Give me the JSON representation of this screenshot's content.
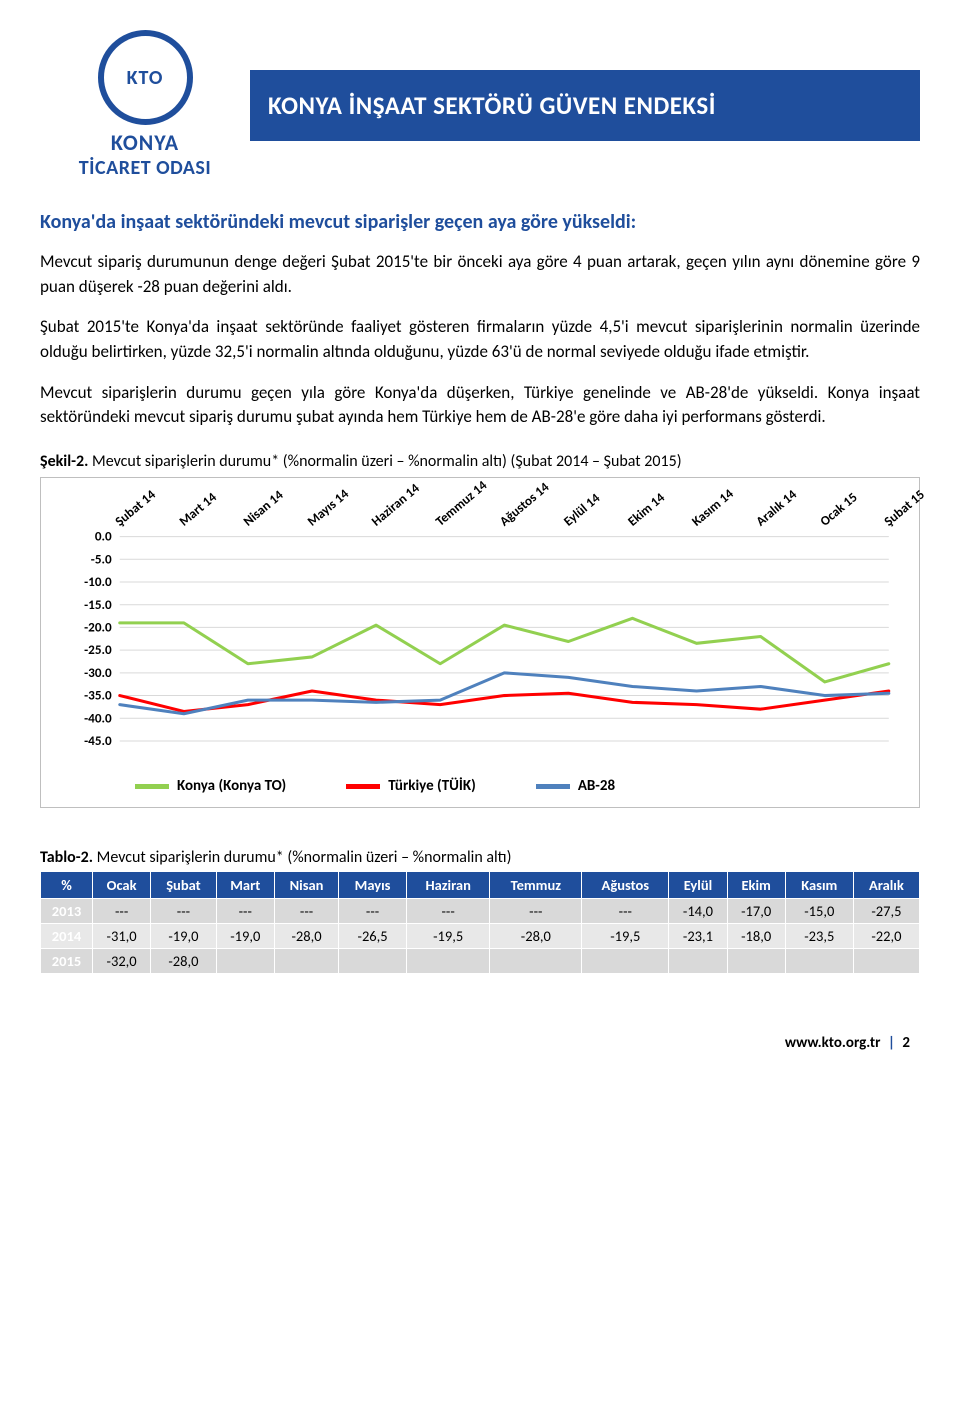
{
  "header": {
    "org_line1": "KONYA",
    "org_line2": "TİCARET ODASI",
    "logo_abbrev": "KTO",
    "title": "KONYA İNŞAAT SEKTÖRÜ GÜVEN ENDEKSİ",
    "title_bg": "#1f4e9c",
    "title_color": "#ffffff",
    "logo_color": "#1f4e9c"
  },
  "section": {
    "heading": "Konya'da inşaat sektöründeki mevcut siparişler geçen aya göre yükseldi:",
    "p1": "Mevcut sipariş durumunun denge değeri Şubat 2015'te bir önceki aya göre 4 puan artarak, geçen yılın aynı dönemine göre 9 puan düşerek -28 puan değerini aldı.",
    "p2": "Şubat 2015'te Konya'da inşaat sektöründe faaliyet gösteren firmaların yüzde 4,5'i mevcut siparişlerinin normalin üzerinde olduğu belirtirken, yüzde 32,5'i normalin altında olduğunu, yüzde 63'ü de normal seviyede olduğu ifade etmiştir.",
    "p3": "Mevcut siparişlerin durumu geçen yıla göre Konya'da düşerken, Türkiye genelinde ve AB-28'de yükseldi. Konya inşaat sektöründeki mevcut sipariş durumu şubat ayında hem Türkiye hem de AB-28'e göre daha iyi performans gösterdi."
  },
  "chart": {
    "caption_label": "Şekil-2.",
    "caption_text": " Mevcut siparişlerin durumu* (%normalin üzeri – %normalin altı) (Şubat 2014 – Şubat 2015)",
    "type": "line",
    "x_labels": [
      "Şubat 14",
      "Mart 14",
      "Nisan 14",
      "Mayıs 14",
      "Haziran 14",
      "Temmuz 14",
      "Ağustos 14",
      "Eylül 14",
      "Ekim 14",
      "Kasım 14",
      "Aralık 14",
      "Ocak 15",
      "Şubat 15"
    ],
    "y_ticks": [
      0,
      -5,
      -10,
      -15,
      -20,
      -25,
      -30,
      -35,
      -40,
      -45
    ],
    "ylim": [
      -45,
      0
    ],
    "series": [
      {
        "name": "Konya (Konya TO)",
        "color": "#92d050",
        "width": 3,
        "values": [
          -19.0,
          -19.0,
          -28.0,
          -26.5,
          -19.5,
          -28.0,
          -19.5,
          -23.1,
          -18.0,
          -23.5,
          -22.0,
          -32.0,
          -28.0
        ]
      },
      {
        "name": "Türkiye (TÜİK)",
        "color": "#ff0000",
        "width": 3,
        "values": [
          -35.0,
          -38.5,
          -37.0,
          -34.0,
          -36.0,
          -37.0,
          -35.0,
          -34.5,
          -36.5,
          -37.0,
          -38.0,
          -36.0,
          -34.0
        ]
      },
      {
        "name": "AB-28",
        "color": "#4f81bd",
        "width": 3,
        "values": [
          -37.0,
          -39.0,
          -36.0,
          -36.0,
          -36.5,
          -36.0,
          -30.0,
          -31.0,
          -33.0,
          -34.0,
          -33.0,
          -35.0,
          -34.5
        ]
      }
    ],
    "grid_color": "#d9d9d9",
    "background": "#ffffff",
    "x_label_rotate": -40,
    "font_size_ticks": 13
  },
  "table": {
    "caption_label": "Tablo-2.",
    "caption_text": " Mevcut siparişlerin durumu* (%normalin üzeri – %normalin altı)",
    "corner": "%",
    "columns": [
      "Ocak",
      "Şubat",
      "Mart",
      "Nisan",
      "Mayıs",
      "Haziran",
      "Temmuz",
      "Ağustos",
      "Eylül",
      "Ekim",
      "Kasım",
      "Aralık"
    ],
    "rows": [
      {
        "year": "2013",
        "cells": [
          "---",
          "---",
          "---",
          "---",
          "---",
          "---",
          "---",
          "---",
          "-14,0",
          "-17,0",
          "-15,0",
          "-27,5"
        ]
      },
      {
        "year": "2014",
        "cells": [
          "-31,0",
          "-19,0",
          "-19,0",
          "-28,0",
          "-26,5",
          "-19,5",
          "-28,0",
          "-19,5",
          "-23,1",
          "-18,0",
          "-23,5",
          "-22,0"
        ]
      },
      {
        "year": "2015",
        "cells": [
          "-32,0",
          "-28,0",
          "",
          "",
          "",
          "",
          "",
          "",
          "",
          "",
          "",
          ""
        ]
      }
    ],
    "header_bg": "#1f4e9c",
    "header_color": "#ffffff",
    "row_bg_odd": "#d9d9d9",
    "row_bg_even": "#e8e8e8"
  },
  "footer": {
    "url": "www.kto.org.tr",
    "sep": "|",
    "page": "2"
  }
}
